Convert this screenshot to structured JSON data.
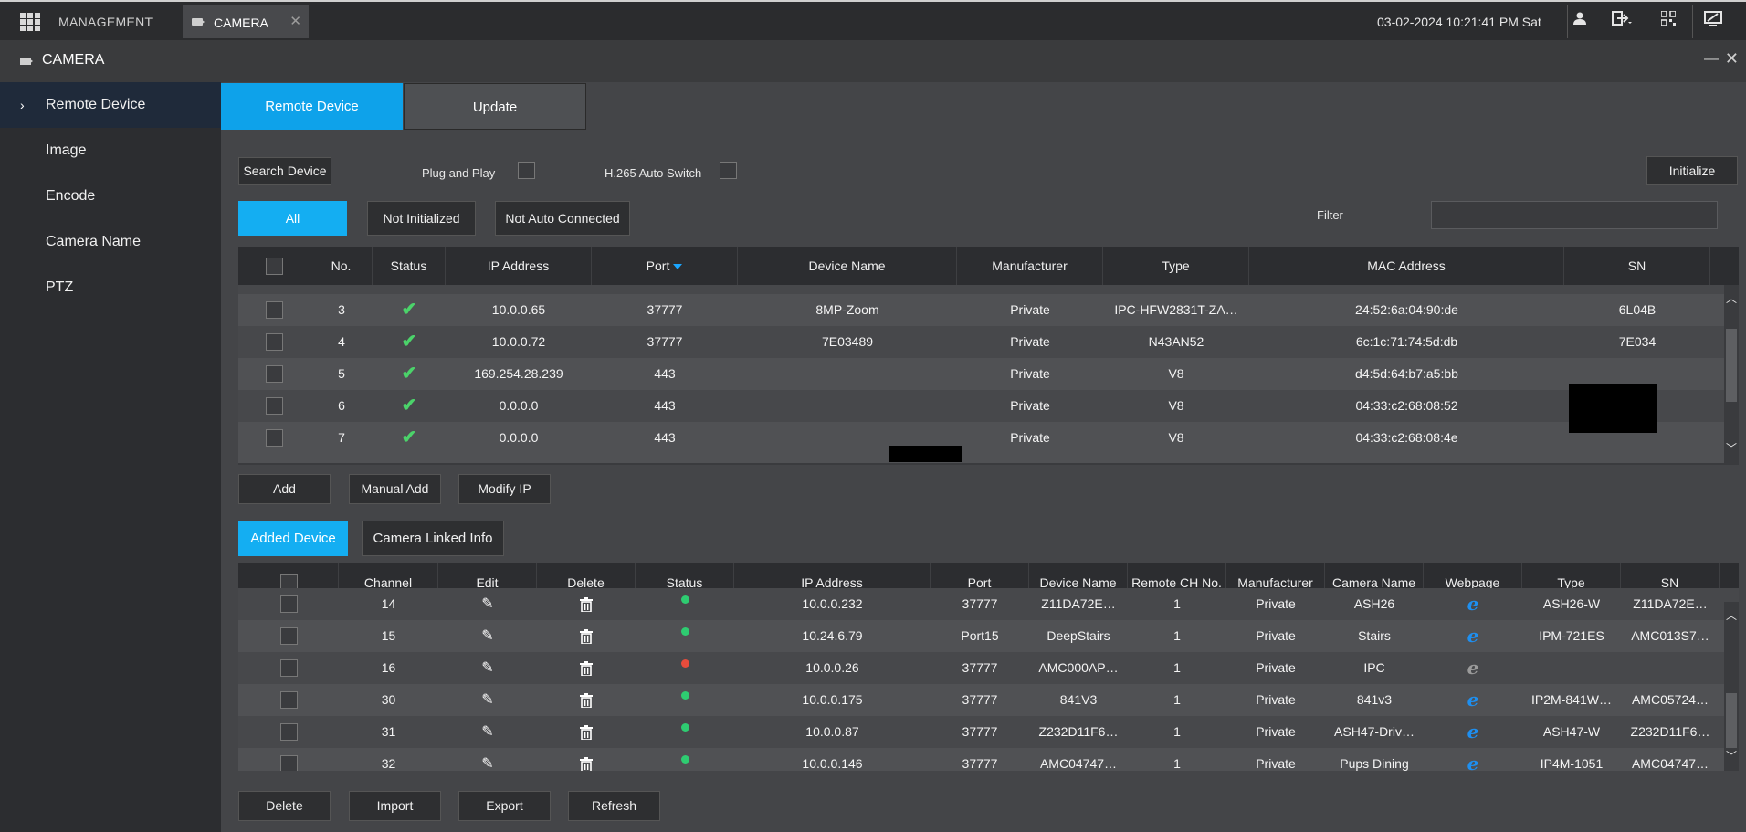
{
  "topbar": {
    "management_label": "MANAGEMENT",
    "tab_label": "CAMERA",
    "datetime": "03-02-2024 10:21:41 PM Sat"
  },
  "window": {
    "title": "CAMERA"
  },
  "sidebar": {
    "items": [
      {
        "label": "Remote Device"
      },
      {
        "label": "Image"
      },
      {
        "label": "Encode"
      },
      {
        "label": "Camera Name"
      },
      {
        "label": "PTZ"
      }
    ]
  },
  "tabs": {
    "remote_device": "Remote Device",
    "update": "Update"
  },
  "search": {
    "search_button": "Search Device",
    "plug_and_play": "Plug and Play",
    "h265_auto_switch": "H.265 Auto Switch",
    "initialize_button": "Initialize",
    "filter_label": "Filter",
    "filter_value": ""
  },
  "filters": {
    "all": "All",
    "not_initialized": "Not Initialized",
    "not_auto_connected": "Not Auto Connected"
  },
  "search_table": {
    "headers": {
      "no": "No.",
      "status": "Status",
      "ip": "IP Address",
      "port": "Port",
      "device_name": "Device Name",
      "manufacturer": "Manufacturer",
      "type": "Type",
      "mac": "MAC Address",
      "sn": "SN"
    },
    "rows": [
      {
        "no": "3",
        "ip": "10.0.0.65",
        "port": "37777",
        "device_name": "8MP-Zoom",
        "manufacturer": "Private",
        "type": "IPC-HFW2831T-ZA…",
        "mac": "24:52:6a:04:90:de",
        "sn": "6L04B"
      },
      {
        "no": "4",
        "ip": "10.0.0.72",
        "port": "37777",
        "device_name": "7E03489",
        "manufacturer": "Private",
        "type": "N43AN52",
        "mac": "6c:1c:71:74:5d:db",
        "sn": "7E034"
      },
      {
        "no": "5",
        "ip": "169.254.28.239",
        "port": "443",
        "device_name": "",
        "manufacturer": "Private",
        "type": "V8",
        "mac": "d4:5d:64:b7:a5:bb",
        "sn": ""
      },
      {
        "no": "6",
        "ip": "0.0.0.0",
        "port": "443",
        "device_name": "",
        "manufacturer": "Private",
        "type": "V8",
        "mac": "04:33:c2:68:08:52",
        "sn": ""
      },
      {
        "no": "7",
        "ip": "0.0.0.0",
        "port": "443",
        "device_name": "",
        "manufacturer": "Private",
        "type": "V8",
        "mac": "04:33:c2:68:08:4e",
        "sn": ""
      }
    ]
  },
  "search_actions": {
    "add": "Add",
    "manual_add": "Manual Add",
    "modify_ip": "Modify IP"
  },
  "added_tabs": {
    "added_device": "Added Device",
    "camera_linked_info": "Camera Linked Info"
  },
  "added_table": {
    "headers": {
      "channel": "Channel",
      "edit": "Edit",
      "delete": "Delete",
      "status": "Status",
      "ip": "IP Address",
      "port": "Port",
      "device_name": "Device Name",
      "remote_ch": "Remote CH No.",
      "manufacturer": "Manufacturer",
      "camera_name": "Camera Name",
      "webpage": "Webpage",
      "type": "Type",
      "sn": "SN"
    },
    "rows": [
      {
        "channel": "14",
        "status_color": "#2ecc71",
        "ip": "10.0.0.232",
        "port": "37777",
        "device_name": "Z11DA72E…",
        "remote_ch": "1",
        "manufacturer": "Private",
        "camera_name": "ASH26",
        "webpage": "blue",
        "type": "ASH26-W",
        "sn": "Z11DA72E…"
      },
      {
        "channel": "15",
        "status_color": "#2ecc71",
        "ip": "10.24.6.79",
        "port": "Port15",
        "device_name": "DeepStairs",
        "remote_ch": "1",
        "manufacturer": "Private",
        "camera_name": "Stairs",
        "webpage": "blue",
        "type": "IPM-721ES",
        "sn": "AMC013S7…"
      },
      {
        "channel": "16",
        "status_color": "#e74c3c",
        "ip": "10.0.0.26",
        "port": "37777",
        "device_name": "AMC000AP…",
        "remote_ch": "1",
        "manufacturer": "Private",
        "camera_name": "IPC",
        "webpage": "gray",
        "type": "",
        "sn": ""
      },
      {
        "channel": "30",
        "status_color": "#2ecc71",
        "ip": "10.0.0.175",
        "port": "37777",
        "device_name": "841V3",
        "remote_ch": "1",
        "manufacturer": "Private",
        "camera_name": "841v3",
        "webpage": "blue",
        "type": "IP2M-841W…",
        "sn": "AMC05724…"
      },
      {
        "channel": "31",
        "status_color": "#2ecc71",
        "ip": "10.0.0.87",
        "port": "37777",
        "device_name": "Z232D11F6…",
        "remote_ch": "1",
        "manufacturer": "Private",
        "camera_name": "ASH47-Driv…",
        "webpage": "blue",
        "type": "ASH47-W",
        "sn": "Z232D11F6…"
      },
      {
        "channel": "32",
        "status_color": "#2ecc71",
        "ip": "10.0.0.146",
        "port": "37777",
        "device_name": "AMC04747…",
        "remote_ch": "1",
        "manufacturer": "Private",
        "camera_name": "Pups Dining",
        "webpage": "blue",
        "type": "IP4M-1051",
        "sn": "AMC04747…"
      }
    ]
  },
  "bottom_actions": {
    "delete": "Delete",
    "import": "Import",
    "export": "Export",
    "refresh": "Refresh"
  }
}
